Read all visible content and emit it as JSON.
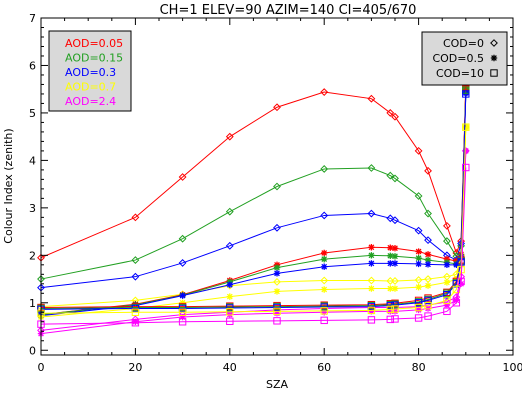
{
  "chart_data": {
    "type": "line",
    "title": "CH=1  ELEV=90  AZIM=140  CI=405/670",
    "xlabel": "SZA",
    "ylabel": "Colour Index (zenith)",
    "xlim": [
      0,
      100
    ],
    "ylim": [
      -0.1,
      7
    ],
    "xticks": [
      0,
      20,
      40,
      60,
      80,
      100
    ],
    "yticks": [
      0,
      1,
      2,
      3,
      4,
      5,
      6,
      7
    ],
    "grid": false,
    "x": [
      0,
      20,
      30,
      40,
      50,
      60,
      70,
      74,
      75,
      80,
      82,
      86,
      88,
      89,
      90
    ],
    "aod_legend": {
      "placement": "top-left",
      "background": "#d9d9d9",
      "entries": [
        {
          "label": "AOD=0.05",
          "color": "#ff0000"
        },
        {
          "label": "AOD=0.15",
          "color": "#22a022"
        },
        {
          "label": "AOD=0.3",
          "color": "#0000ff"
        },
        {
          "label": "AOD=0.7",
          "color": "#ffff00"
        },
        {
          "label": "AOD=2.4",
          "color": "#ff00ff"
        }
      ]
    },
    "cod_legend": {
      "placement": "top-right",
      "background": "#d9d9d9",
      "entries": [
        {
          "label": "COD=0",
          "marker": "diamond"
        },
        {
          "label": "COD=0.5",
          "marker": "asterisk"
        },
        {
          "label": "COD=10",
          "marker": "square"
        }
      ]
    },
    "series": [
      {
        "aod": "AOD=0.05",
        "cod": "COD=0",
        "color": "#ff0000",
        "marker": "diamond",
        "values": [
          1.95,
          2.8,
          3.65,
          4.5,
          5.12,
          5.44,
          5.3,
          5.0,
          4.92,
          4.2,
          3.78,
          2.62,
          2.05,
          2.3,
          5.55
        ]
      },
      {
        "aod": "AOD=0.15",
        "cod": "COD=0",
        "color": "#22a022",
        "marker": "diamond",
        "values": [
          1.5,
          1.9,
          2.35,
          2.92,
          3.45,
          3.82,
          3.84,
          3.68,
          3.62,
          3.25,
          2.88,
          2.3,
          1.98,
          2.2,
          5.48
        ]
      },
      {
        "aod": "AOD=0.3",
        "cod": "COD=0",
        "color": "#0000ff",
        "marker": "diamond",
        "values": [
          1.32,
          1.55,
          1.84,
          2.2,
          2.58,
          2.84,
          2.88,
          2.78,
          2.74,
          2.52,
          2.32,
          2.0,
          1.9,
          2.25,
          5.42
        ]
      },
      {
        "aod": "AOD=0.7",
        "cod": "COD=0",
        "color": "#ffff00",
        "marker": "diamond",
        "values": [
          0.92,
          1.05,
          1.18,
          1.36,
          1.44,
          1.47,
          1.47,
          1.46,
          1.46,
          1.48,
          1.5,
          1.55,
          1.6,
          2.0,
          4.7
        ]
      },
      {
        "aod": "AOD=2.4",
        "cod": "COD=0",
        "color": "#ff00ff",
        "marker": "diamond",
        "values": [
          0.42,
          0.65,
          0.75,
          0.8,
          0.85,
          0.88,
          0.9,
          0.9,
          0.9,
          0.92,
          0.95,
          1.02,
          1.12,
          1.55,
          4.2
        ]
      },
      {
        "aod": "AOD=0.05",
        "cod": "COD=0.5",
        "color": "#ff0000",
        "marker": "asterisk",
        "values": [
          0.75,
          0.97,
          1.17,
          1.47,
          1.8,
          2.05,
          2.17,
          2.16,
          2.15,
          2.08,
          2.02,
          1.92,
          1.88,
          2.02,
          5.55
        ]
      },
      {
        "aod": "AOD=0.15",
        "cod": "COD=0.5",
        "color": "#22a022",
        "marker": "asterisk",
        "values": [
          0.75,
          0.96,
          1.16,
          1.44,
          1.74,
          1.92,
          2.0,
          1.99,
          1.98,
          1.94,
          1.9,
          1.85,
          1.82,
          1.98,
          5.48
        ]
      },
      {
        "aod": "AOD=0.3",
        "cod": "COD=0.5",
        "color": "#0000ff",
        "marker": "asterisk",
        "values": [
          0.73,
          0.94,
          1.15,
          1.38,
          1.62,
          1.76,
          1.83,
          1.83,
          1.83,
          1.82,
          1.81,
          1.8,
          1.8,
          1.95,
          5.42
        ]
      },
      {
        "aod": "AOD=0.7",
        "cod": "COD=0.5",
        "color": "#ffff00",
        "marker": "asterisk",
        "values": [
          0.7,
          0.88,
          1.0,
          1.13,
          1.24,
          1.28,
          1.3,
          1.3,
          1.3,
          1.33,
          1.36,
          1.43,
          1.5,
          1.8,
          4.7
        ]
      },
      {
        "aod": "AOD=2.4",
        "cod": "COD=0.5",
        "color": "#ff00ff",
        "marker": "asterisk",
        "values": [
          0.35,
          0.6,
          0.7,
          0.75,
          0.78,
          0.8,
          0.82,
          0.82,
          0.82,
          0.85,
          0.88,
          0.95,
          1.05,
          1.4,
          4.2
        ]
      },
      {
        "aod": "AOD=0.05",
        "cod": "COD=10",
        "color": "#ff0000",
        "marker": "square",
        "values": [
          0.9,
          0.92,
          0.92,
          0.93,
          0.94,
          0.95,
          0.96,
          0.98,
          0.99,
          1.05,
          1.1,
          1.22,
          1.45,
          1.9,
          5.55
        ]
      },
      {
        "aod": "AOD=0.15",
        "cod": "COD=10",
        "color": "#22a022",
        "marker": "square",
        "values": [
          0.88,
          0.9,
          0.9,
          0.91,
          0.92,
          0.93,
          0.94,
          0.96,
          0.97,
          1.02,
          1.07,
          1.2,
          1.42,
          1.88,
          5.48
        ]
      },
      {
        "aod": "AOD=0.3",
        "cod": "COD=10",
        "color": "#0000ff",
        "marker": "square",
        "values": [
          0.86,
          0.88,
          0.88,
          0.89,
          0.9,
          0.91,
          0.92,
          0.94,
          0.95,
          1.0,
          1.05,
          1.17,
          1.4,
          1.86,
          5.4
        ]
      },
      {
        "aod": "AOD=0.7",
        "cod": "COD=10",
        "color": "#ffff00",
        "marker": "square",
        "values": [
          0.78,
          0.8,
          0.8,
          0.81,
          0.82,
          0.83,
          0.84,
          0.86,
          0.87,
          0.9,
          0.94,
          1.05,
          1.28,
          1.7,
          4.7
        ]
      },
      {
        "aod": "AOD=2.4",
        "cod": "COD=10",
        "color": "#ff00ff",
        "marker": "square",
        "values": [
          0.55,
          0.58,
          0.6,
          0.61,
          0.62,
          0.63,
          0.64,
          0.65,
          0.66,
          0.68,
          0.72,
          0.82,
          1.0,
          1.45,
          3.85
        ]
      }
    ]
  }
}
